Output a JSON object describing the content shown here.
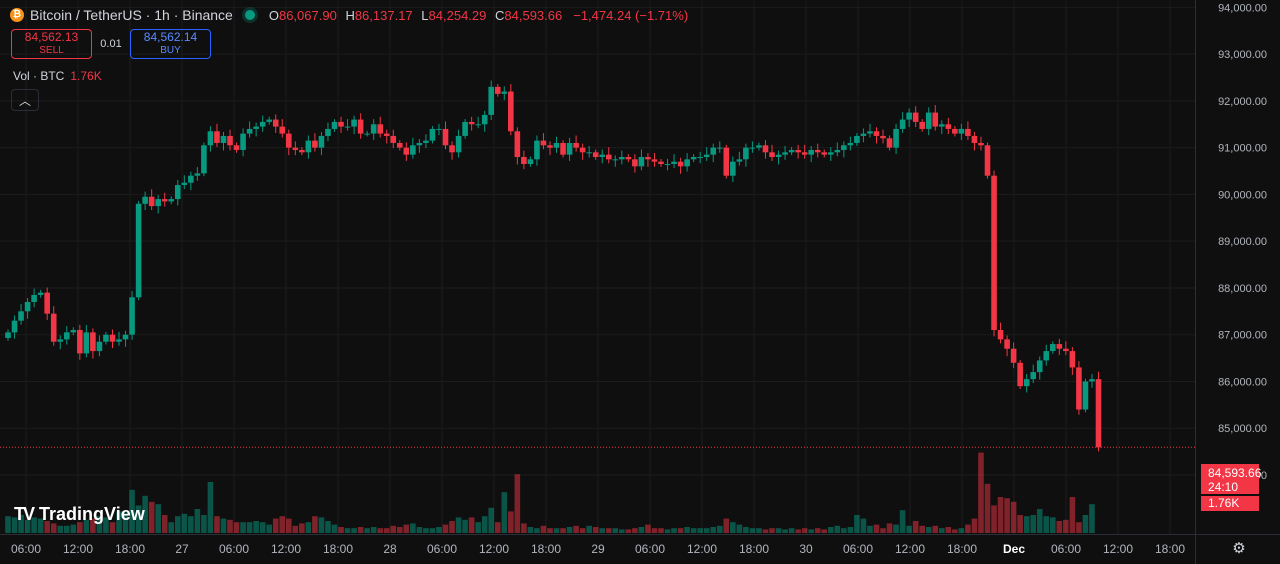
{
  "legend": {
    "symbol_title": "Bitcoin / TetherUS · 1h · Binance",
    "coin_icon": "bitcoin-icon",
    "o_label": "O",
    "o_value": "86,067.90",
    "h_label": "H",
    "h_value": "86,137.17",
    "l_label": "L",
    "l_value": "84,254.29",
    "c_label": "C",
    "c_value": "84,593.66",
    "change": "−1,474.24 (−1.71%)"
  },
  "trade": {
    "sell_price": "84,562.13",
    "sell_label": "SELL",
    "spread": "0.01",
    "buy_price": "84,562.14",
    "buy_label": "BUY"
  },
  "volume_legend": {
    "label": "Vol · BTC",
    "value": "1.76K"
  },
  "collapse_icon": "chevron-up-icon",
  "logo_text": "TradingView",
  "last_price_tag": {
    "price": "84,593.66",
    "countdown": "24:10"
  },
  "volume_tag": "1.76K",
  "settings_icon": "gear-icon",
  "colors": {
    "up": "#089981",
    "down": "#f23645",
    "background": "#0f0f0f",
    "grid": "#1c1c1c",
    "buy_accent": "#2962ff"
  },
  "chart_data": {
    "type": "candlestick",
    "symbol": "BTCUSDT",
    "exchange": "Binance",
    "interval": "1h",
    "y_ticks": [
      "94,000.00",
      "93,000.00",
      "92,000.00",
      "91,000.00",
      "90,000.00",
      "89,000.00",
      "88,000.00",
      "87,000.00",
      "86,000.00",
      "85,000.00",
      "84,000.00"
    ],
    "y_tick_values": [
      94000,
      93000,
      92000,
      91000,
      90000,
      89000,
      88000,
      87000,
      86000,
      85000,
      84000
    ],
    "ylim": [
      83380,
      94050
    ],
    "x_ticks": [
      "06:00",
      "12:00",
      "18:00",
      "27",
      "06:00",
      "12:00",
      "18:00",
      "28",
      "06:00",
      "12:00",
      "18:00",
      "29",
      "06:00",
      "12:00",
      "18:00",
      "30",
      "06:00",
      "12:00",
      "18:00",
      "Dec",
      "06:00",
      "12:00",
      "18:00"
    ],
    "x_tick_bold": [
      false,
      false,
      false,
      false,
      false,
      false,
      false,
      false,
      false,
      false,
      false,
      false,
      false,
      false,
      false,
      false,
      false,
      false,
      false,
      true,
      false,
      false,
      false
    ],
    "last_price": 84593.66,
    "grid": true,
    "closes": [
      87050,
      87300,
      87500,
      87700,
      87850,
      87900,
      87450,
      86850,
      86900,
      87050,
      87100,
      86600,
      87050,
      86650,
      86850,
      87000,
      86850,
      86900,
      87000,
      87800,
      89800,
      89950,
      89750,
      89900,
      89850,
      89900,
      90200,
      90250,
      90400,
      90450,
      91050,
      91350,
      91100,
      91250,
      91050,
      90950,
      91300,
      91400,
      91450,
      91550,
      91600,
      91450,
      91300,
      91000,
      90950,
      90900,
      91150,
      91000,
      91250,
      91400,
      91550,
      91450,
      91450,
      91600,
      91300,
      91300,
      91500,
      91300,
      91250,
      91100,
      91000,
      90850,
      91050,
      91100,
      91150,
      91400,
      91400,
      91050,
      90900,
      91250,
      91550,
      91500,
      91500,
      91700,
      92300,
      92150,
      92200,
      91350,
      90800,
      90650,
      90750,
      91150,
      91050,
      91000,
      91100,
      90850,
      91100,
      91000,
      90900,
      90900,
      90800,
      90850,
      90750,
      90750,
      90800,
      90750,
      90600,
      90800,
      90750,
      90700,
      90650,
      90650,
      90700,
      90600,
      90750,
      90800,
      90800,
      90850,
      91000,
      91000,
      90400,
      90700,
      90750,
      91000,
      91000,
      91050,
      90900,
      90800,
      90850,
      90900,
      90950,
      90900,
      90850,
      90950,
      90900,
      90850,
      90900,
      90950,
      91050,
      91100,
      91250,
      91300,
      91350,
      91250,
      91200,
      91000,
      91400,
      91600,
      91750,
      91550,
      91400,
      91750,
      91450,
      91500,
      91400,
      91300,
      91400,
      91250,
      91100,
      91050,
      90400,
      87100,
      86900,
      86700,
      86400,
      85900,
      86050,
      86200,
      86450,
      86650,
      86800,
      86700,
      86650,
      86300,
      85400,
      86000,
      86050,
      84590
    ],
    "volume_ylim": [
      0,
      90
    ],
    "volumes": [
      28,
      26,
      30,
      22,
      26,
      24,
      20,
      16,
      12,
      12,
      14,
      18,
      22,
      24,
      28,
      26,
      18,
      36,
      34,
      72,
      46,
      62,
      52,
      48,
      30,
      18,
      28,
      32,
      28,
      40,
      30,
      85,
      28,
      24,
      22,
      18,
      18,
      18,
      20,
      18,
      14,
      24,
      28,
      24,
      12,
      16,
      18,
      28,
      26,
      20,
      14,
      10,
      8,
      8,
      10,
      8,
      10,
      8,
      8,
      12,
      10,
      14,
      16,
      10,
      8,
      8,
      10,
      14,
      20,
      26,
      22,
      26,
      18,
      28,
      42,
      18,
      68,
      36,
      98,
      16,
      10,
      8,
      12,
      8,
      8,
      8,
      10,
      12,
      8,
      12,
      10,
      8,
      8,
      8,
      6,
      6,
      8,
      10,
      14,
      8,
      8,
      6,
      8,
      8,
      10,
      8,
      8,
      8,
      10,
      12,
      24,
      18,
      14,
      10,
      8,
      8,
      6,
      8,
      8,
      6,
      8,
      6,
      8,
      6,
      8,
      6,
      10,
      12,
      8,
      10,
      30,
      24,
      12,
      14,
      8,
      16,
      14,
      38,
      12,
      20,
      12,
      10,
      12,
      8,
      10,
      6,
      8,
      14,
      24,
      134,
      82,
      46,
      60,
      58,
      52,
      30,
      28,
      30,
      40,
      28,
      26,
      20,
      22,
      60,
      18,
      30,
      48
    ]
  }
}
